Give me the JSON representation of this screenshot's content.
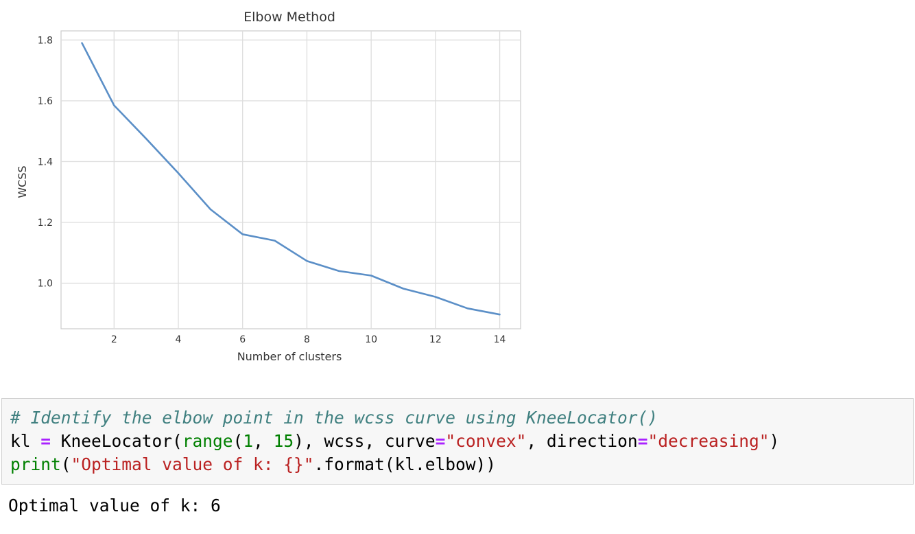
{
  "chart_data": {
    "type": "line",
    "title": "Elbow Method",
    "xlabel": "Number of clusters",
    "ylabel": "WCSS",
    "x": [
      1,
      2,
      3,
      4,
      5,
      6,
      7,
      8,
      9,
      10,
      11,
      12,
      13,
      14
    ],
    "series": [
      {
        "values": [
          1.79,
          1.585,
          1.475,
          1.362,
          1.243,
          1.161,
          1.14,
          1.073,
          1.04,
          1.025,
          0.982,
          0.955,
          0.917,
          0.897
        ],
        "color": "#5b8fc7"
      }
    ],
    "xlim": [
      0.35,
      14.65
    ],
    "ylim": [
      0.85,
      1.83
    ],
    "xticks": [
      2,
      4,
      6,
      8,
      10,
      12,
      14
    ],
    "xtick_labels": [
      "2",
      "4",
      "6",
      "8",
      "10",
      "12",
      "14"
    ],
    "yticks": [
      1.0,
      1.2,
      1.4,
      1.6,
      1.8
    ],
    "ytick_labels": [
      "1.0",
      "1.2",
      "1.4",
      "1.6",
      "1.8"
    ],
    "grid": true,
    "style": "seaborn-whitegrid"
  },
  "code_cell": {
    "lines": [
      [
        {
          "t": "# Identify the elbow point in the wcss curve using KneeLocator()",
          "c": "comment"
        }
      ],
      [
        {
          "t": "kl ",
          "c": "plain"
        },
        {
          "t": "=",
          "c": "op"
        },
        {
          "t": " KneeLocator(",
          "c": "plain"
        },
        {
          "t": "range",
          "c": "builtin"
        },
        {
          "t": "(",
          "c": "plain"
        },
        {
          "t": "1",
          "c": "num"
        },
        {
          "t": ", ",
          "c": "plain"
        },
        {
          "t": "15",
          "c": "num"
        },
        {
          "t": "), wcss, curve",
          "c": "plain"
        },
        {
          "t": "=",
          "c": "op"
        },
        {
          "t": "\"convex\"",
          "c": "str"
        },
        {
          "t": ", direction",
          "c": "plain"
        },
        {
          "t": "=",
          "c": "op"
        },
        {
          "t": "\"decreasing\"",
          "c": "str"
        },
        {
          "t": ")",
          "c": "plain"
        }
      ],
      [
        {
          "t": "print",
          "c": "builtin"
        },
        {
          "t": "(",
          "c": "plain"
        },
        {
          "t": "\"Optimal value of k: {}\"",
          "c": "str"
        },
        {
          "t": ".format(kl.elbow))",
          "c": "plain"
        }
      ]
    ]
  },
  "output": {
    "text": "Optimal value of k: 6"
  }
}
